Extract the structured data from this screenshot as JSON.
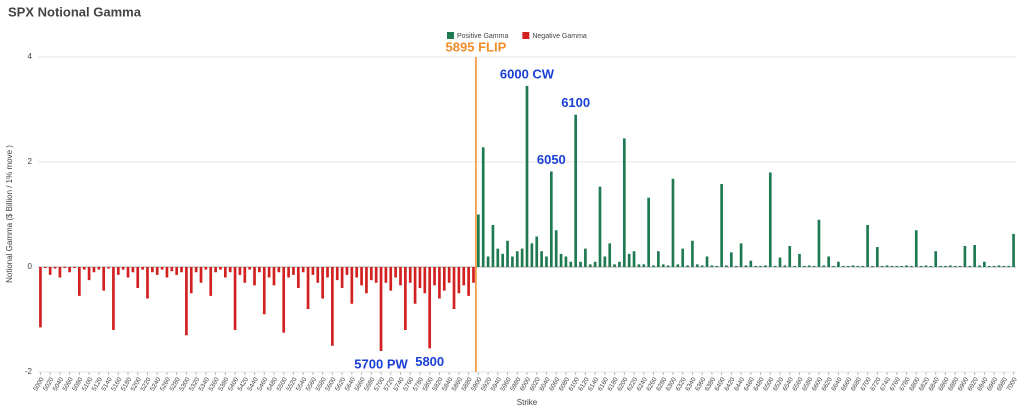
{
  "chart_data": {
    "type": "bar",
    "title": "SPX Notional Gamma",
    "y_label": "Notional Gamma ($ Billion / 1% move )",
    "x_label": "Strike",
    "xlim": [
      4995,
      7005
    ],
    "xticks": [
      5000,
      5020,
      5040,
      5060,
      5080,
      5100,
      5120,
      5140,
      5160,
      5180,
      5200,
      5220,
      5240,
      5260,
      5280,
      5300,
      5320,
      5340,
      5360,
      5380,
      5400,
      5420,
      5440,
      5460,
      5480,
      5500,
      5520,
      5540,
      5560,
      5580,
      5600,
      5620,
      5640,
      5660,
      5680,
      5700,
      5720,
      5740,
      5760,
      5780,
      5800,
      5820,
      5840,
      5860,
      5880,
      5900,
      5920,
      5940,
      5960,
      5980,
      6000,
      6020,
      6040,
      6060,
      6080,
      6100,
      6120,
      6140,
      6160,
      6180,
      6200,
      6220,
      6240,
      6260,
      6280,
      6300,
      6320,
      6340,
      6360,
      6380,
      6400,
      6420,
      6440,
      6460,
      6480,
      6500,
      6520,
      6540,
      6560,
      6580,
      6600,
      6620,
      6640,
      6660,
      6680,
      6700,
      6720,
      6740,
      6760,
      6780,
      6800,
      6820,
      6840,
      6860,
      6880,
      6900,
      6920,
      6940,
      6960,
      6980,
      7000
    ],
    "ylim": [
      -2,
      4
    ],
    "yticks": [
      -2,
      0,
      2,
      4
    ],
    "grid": true,
    "series": [
      {
        "name": "Positive Gamma",
        "color": "#1f7a52",
        "x": [
          5900,
          5910,
          5920,
          5930,
          5940,
          5950,
          5960,
          5970,
          5980,
          5990,
          6000,
          6010,
          6020,
          6030,
          6040,
          6050,
          6060,
          6070,
          6080,
          6090,
          6100,
          6110,
          6120,
          6130,
          6140,
          6150,
          6160,
          6170,
          6180,
          6190,
          6200,
          6210,
          6220,
          6230,
          6240,
          6250,
          6260,
          6270,
          6280,
          6290,
          6300,
          6310,
          6320,
          6330,
          6340,
          6350,
          6360,
          6370,
          6380,
          6390,
          6400,
          6410,
          6420,
          6430,
          6440,
          6450,
          6460,
          6470,
          6480,
          6490,
          6500,
          6510,
          6520,
          6530,
          6540,
          6550,
          6560,
          6570,
          6580,
          6590,
          6600,
          6610,
          6620,
          6630,
          6640,
          6650,
          6660,
          6670,
          6680,
          6690,
          6700,
          6710,
          6720,
          6730,
          6740,
          6750,
          6760,
          6770,
          6780,
          6790,
          6800,
          6810,
          6820,
          6830,
          6840,
          6850,
          6860,
          6870,
          6880,
          6890,
          6900,
          6910,
          6920,
          6930,
          6940,
          6950,
          6960,
          6970,
          6980,
          6990,
          7000
        ],
        "values": [
          1.0,
          2.28,
          0.2,
          0.8,
          0.35,
          0.25,
          0.5,
          0.2,
          0.3,
          0.35,
          3.45,
          0.45,
          0.58,
          0.3,
          0.2,
          1.82,
          0.7,
          0.25,
          0.2,
          0.1,
          2.9,
          0.1,
          0.35,
          0.05,
          0.1,
          1.53,
          0.2,
          0.45,
          0.05,
          0.1,
          2.45,
          0.25,
          0.3,
          0.05,
          0.05,
          1.32,
          0.03,
          0.3,
          0.05,
          0.03,
          1.68,
          0.05,
          0.35,
          0.03,
          0.5,
          0.05,
          0.03,
          0.2,
          0.03,
          0.02,
          1.58,
          0.03,
          0.28,
          0.02,
          0.45,
          0.03,
          0.12,
          0.02,
          0.02,
          0.03,
          1.8,
          0.02,
          0.18,
          0.03,
          0.4,
          0.02,
          0.25,
          0.02,
          0.03,
          0.02,
          0.9,
          0.03,
          0.2,
          0.02,
          0.1,
          0.02,
          0.02,
          0.03,
          0.02,
          0.02,
          0.8,
          0.02,
          0.38,
          0.02,
          0.03,
          0.02,
          0.02,
          0.02,
          0.03,
          0.02,
          0.7,
          0.02,
          0.03,
          0.02,
          0.3,
          0.02,
          0.02,
          0.03,
          0.02,
          0.02,
          0.4,
          0.02,
          0.42,
          0.03,
          0.1,
          0.02,
          0.02,
          0.03,
          0.02,
          0.02,
          0.63
        ]
      },
      {
        "name": "Negative Gamma",
        "color": "#d21f1f",
        "x": [
          5000,
          5010,
          5020,
          5030,
          5040,
          5050,
          5060,
          5070,
          5080,
          5090,
          5100,
          5110,
          5120,
          5130,
          5140,
          5150,
          5160,
          5170,
          5180,
          5190,
          5200,
          5210,
          5220,
          5230,
          5240,
          5250,
          5260,
          5270,
          5280,
          5290,
          5300,
          5310,
          5320,
          5330,
          5340,
          5350,
          5360,
          5370,
          5380,
          5390,
          5400,
          5410,
          5420,
          5430,
          5440,
          5450,
          5460,
          5470,
          5480,
          5490,
          5500,
          5510,
          5520,
          5530,
          5540,
          5550,
          5560,
          5570,
          5580,
          5590,
          5600,
          5610,
          5620,
          5630,
          5640,
          5650,
          5660,
          5670,
          5680,
          5690,
          5700,
          5710,
          5720,
          5730,
          5740,
          5750,
          5760,
          5770,
          5780,
          5790,
          5800,
          5810,
          5820,
          5830,
          5840,
          5850,
          5860,
          5870,
          5880,
          5890
        ],
        "values": [
          -1.15,
          -0.02,
          -0.15,
          -0.03,
          -0.2,
          -0.02,
          -0.1,
          -0.02,
          -0.55,
          -0.05,
          -0.25,
          -0.1,
          -0.05,
          -0.45,
          -0.03,
          -1.2,
          -0.15,
          -0.05,
          -0.2,
          -0.1,
          -0.4,
          -0.05,
          -0.6,
          -0.1,
          -0.15,
          -0.05,
          -0.2,
          -0.08,
          -0.15,
          -0.1,
          -1.3,
          -0.5,
          -0.1,
          -0.3,
          -0.05,
          -0.55,
          -0.1,
          -0.05,
          -0.2,
          -0.1,
          -1.2,
          -0.15,
          -0.3,
          -0.05,
          -0.35,
          -0.1,
          -0.9,
          -0.2,
          -0.35,
          -0.1,
          -1.25,
          -0.2,
          -0.15,
          -0.4,
          -0.1,
          -0.8,
          -0.15,
          -0.3,
          -0.6,
          -0.2,
          -1.5,
          -0.25,
          -0.4,
          -0.15,
          -0.7,
          -0.2,
          -0.35,
          -0.5,
          -0.25,
          -0.3,
          -1.6,
          -0.3,
          -0.45,
          -0.2,
          -0.35,
          -1.2,
          -0.3,
          -0.7,
          -0.4,
          -0.5,
          -1.55,
          -0.35,
          -0.6,
          -0.45,
          -0.3,
          -0.8,
          -0.5,
          -0.35,
          -0.55,
          -0.3
        ]
      }
    ],
    "flip": {
      "text": "5895 FLIP",
      "x": 5895,
      "color": "#f28c28"
    },
    "annotations": [
      {
        "text": "6000 CW",
        "x": 6000,
        "color": "#1a3fd6"
      },
      {
        "text": "6100",
        "x": 6100,
        "color": "#1a3fd6"
      },
      {
        "text": "6050",
        "x": 6050,
        "color": "#1a3fd6"
      },
      {
        "text": "5700 PW",
        "x": 5700,
        "color": "#1a3fd6"
      },
      {
        "text": "5800",
        "x": 5800,
        "color": "#1a3fd6"
      }
    ]
  }
}
